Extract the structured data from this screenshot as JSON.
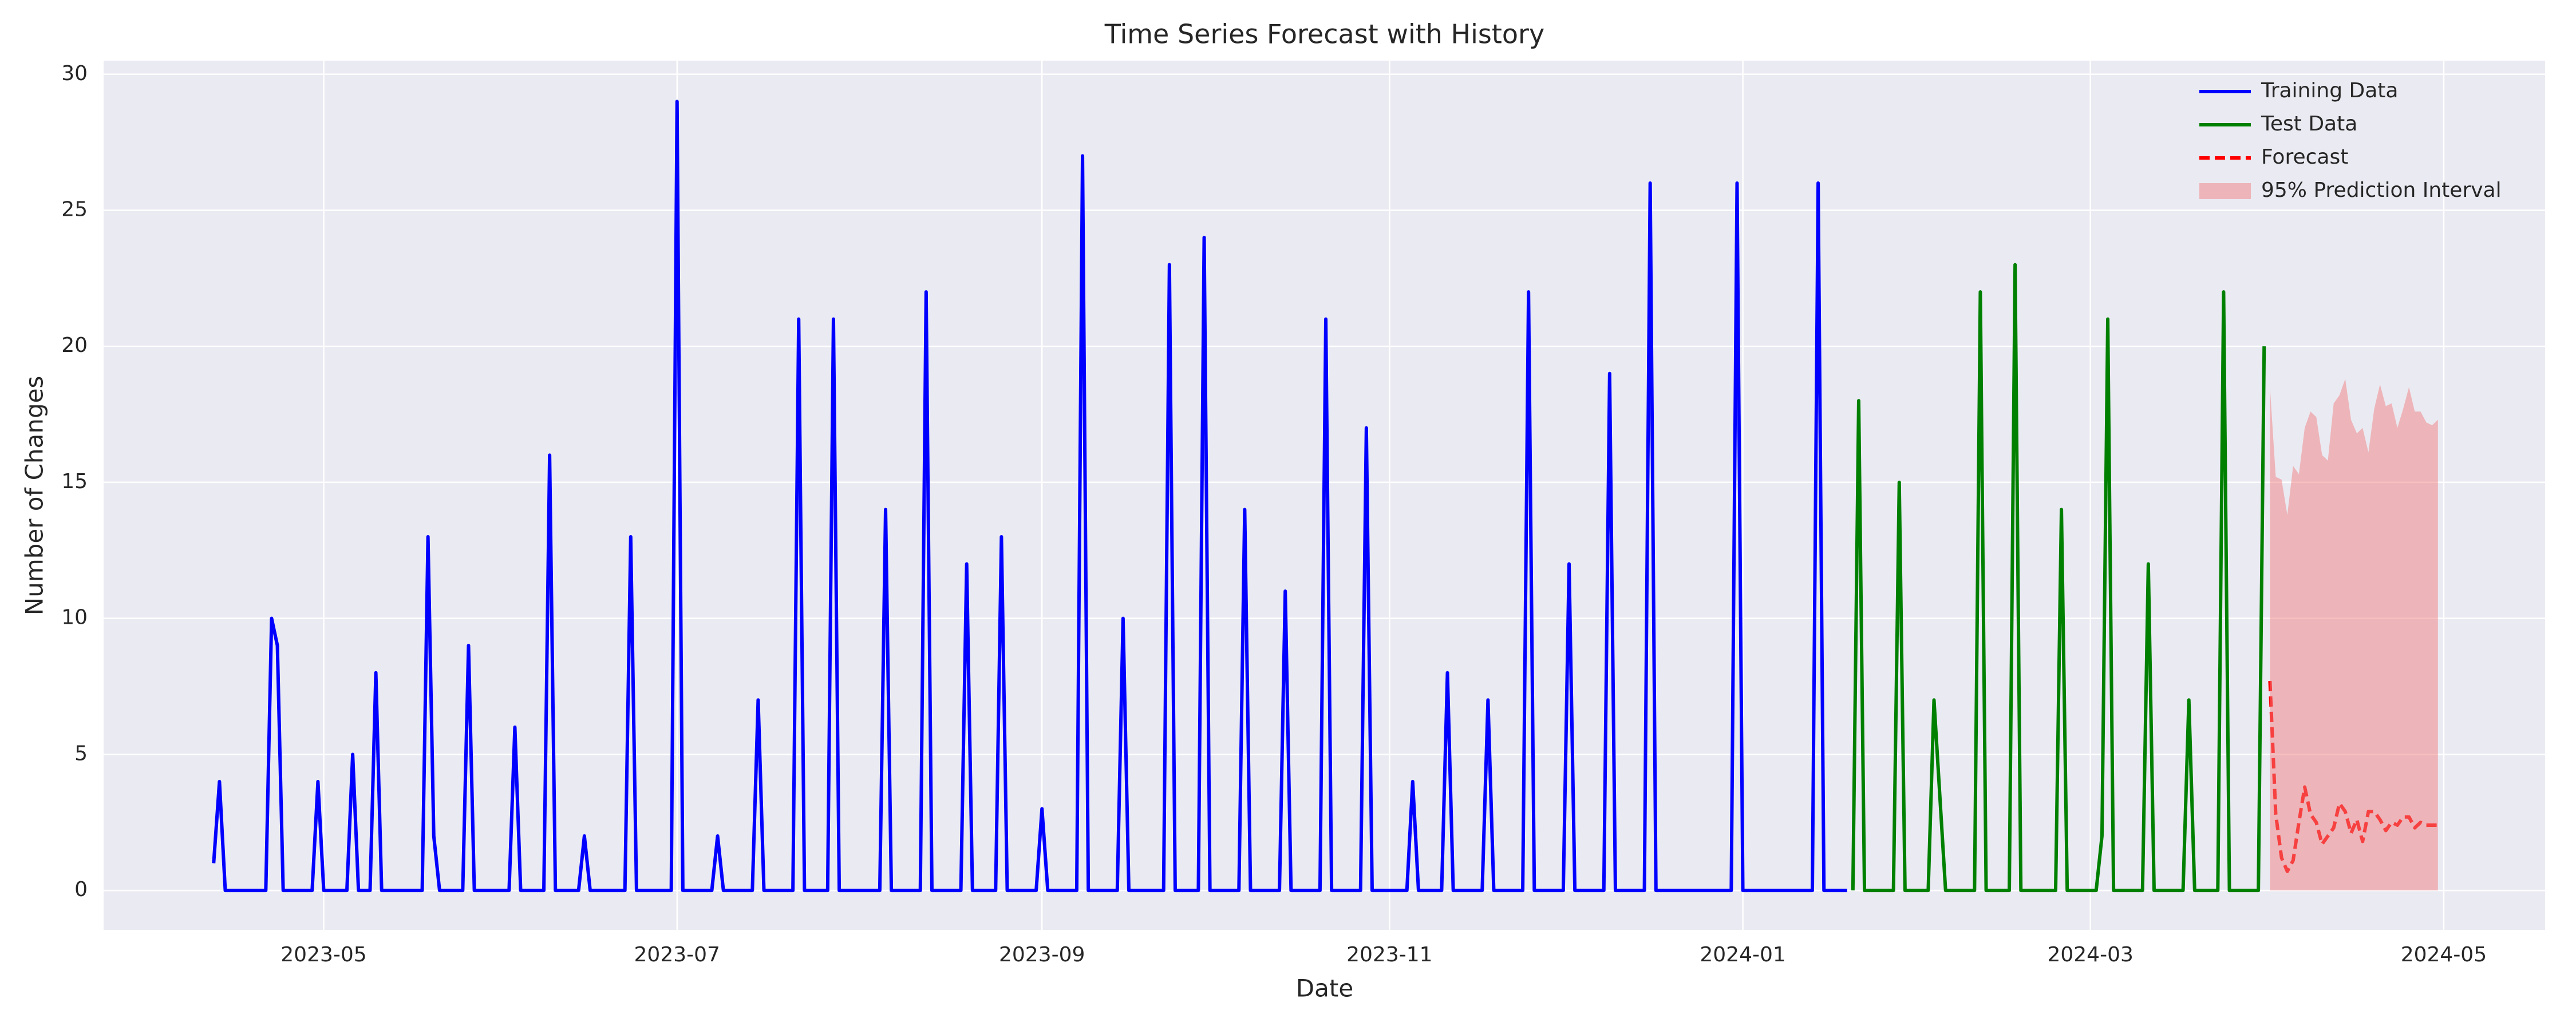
{
  "chart_data": {
    "type": "line",
    "title": "Time Series Forecast with History",
    "x_label": "Date",
    "y_label": "Number of Changes",
    "xlim": [
      -8,
      413.5
    ],
    "xticks": [
      {
        "value": 30,
        "label": "2023-05"
      },
      {
        "value": 91,
        "label": "2023-07"
      },
      {
        "value": 154,
        "label": "2023-09"
      },
      {
        "value": 214,
        "label": "2023-11"
      },
      {
        "value": 275,
        "label": "2024-01"
      },
      {
        "value": 335,
        "label": "2024-03"
      },
      {
        "value": 396,
        "label": "2024-05"
      }
    ],
    "ylim": [
      -1.45,
      30.5
    ],
    "yticks": [
      0,
      5,
      10,
      15,
      20,
      25,
      30
    ],
    "grid": true,
    "legend": "upper right",
    "series": [
      {
        "name": "Training Data",
        "color": "#0000ff",
        "dashed": false,
        "x": [
          11,
          12,
          13,
          20,
          21,
          22,
          23,
          28,
          29,
          30,
          34,
          35,
          36,
          38,
          39,
          40,
          47,
          48,
          49,
          50,
          54,
          55,
          56,
          62,
          63,
          64,
          68,
          69,
          70,
          74,
          75,
          76,
          82,
          83,
          84,
          90,
          91,
          92,
          97,
          98,
          99,
          104,
          105,
          106,
          111,
          112,
          113,
          117,
          118,
          119,
          126,
          127,
          128,
          133,
          134,
          135,
          140,
          141,
          142,
          146,
          147,
          148,
          153,
          154,
          155,
          160,
          161,
          162,
          167,
          168,
          169,
          175,
          176,
          177,
          181,
          182,
          183,
          188,
          189,
          190,
          195,
          196,
          197,
          202,
          203,
          204,
          209,
          210,
          211,
          217,
          218,
          219,
          223,
          224,
          225,
          230,
          231,
          232,
          237,
          238,
          239,
          244,
          245,
          246,
          251,
          252,
          253,
          258,
          259,
          260,
          273,
          274,
          275,
          287,
          288,
          289,
          293
        ],
        "values": [
          1,
          4,
          0,
          0,
          10,
          9,
          0,
          0,
          4,
          0,
          0,
          5,
          0,
          0,
          8,
          0,
          0,
          13,
          2,
          0,
          0,
          9,
          0,
          0,
          6,
          0,
          0,
          16,
          0,
          0,
          2,
          0,
          0,
          13,
          0,
          0,
          29,
          0,
          0,
          2,
          0,
          0,
          7,
          0,
          0,
          21,
          0,
          0,
          21,
          0,
          0,
          14,
          0,
          0,
          22,
          0,
          0,
          12,
          0,
          0,
          13,
          0,
          0,
          3,
          0,
          0,
          27,
          0,
          0,
          10,
          0,
          0,
          23,
          0,
          0,
          24,
          0,
          0,
          14,
          0,
          0,
          11,
          0,
          0,
          21,
          0,
          0,
          17,
          0,
          0,
          4,
          0,
          0,
          8,
          0,
          0,
          7,
          0,
          0,
          22,
          0,
          0,
          12,
          0,
          0,
          19,
          0,
          0,
          26,
          0,
          0,
          26,
          0,
          0,
          26,
          0,
          0
        ]
      },
      {
        "name": "Test Data",
        "color": "#008000",
        "dashed": false,
        "x": [
          294,
          295,
          296,
          301,
          302,
          303,
          307,
          308,
          310,
          315,
          316,
          317,
          321,
          322,
          323,
          329,
          330,
          331,
          336,
          337,
          338,
          339,
          344,
          345,
          346,
          351,
          352,
          353,
          357,
          358,
          359,
          364,
          365
        ],
        "values": [
          0,
          18,
          0,
          0,
          15,
          0,
          0,
          7,
          0,
          0,
          22,
          0,
          0,
          23,
          0,
          0,
          14,
          0,
          0,
          2,
          21,
          0,
          0,
          12,
          0,
          0,
          7,
          0,
          0,
          22,
          0,
          0,
          20
        ]
      },
      {
        "name": "Forecast",
        "color": "#ff0000",
        "dashed": true,
        "x": [
          366,
          367,
          368,
          369,
          370,
          371,
          372,
          373,
          374,
          375,
          376,
          377,
          378,
          379,
          380,
          381,
          382,
          383,
          384,
          385,
          386,
          387,
          388,
          389,
          390,
          391,
          392,
          393,
          394,
          395
        ],
        "values": [
          7.7,
          2.8,
          1.2,
          0.7,
          1.1,
          2.5,
          3.8,
          2.8,
          2.5,
          1.7,
          2.0,
          2.3,
          3.2,
          2.9,
          2.1,
          2.6,
          1.8,
          2.9,
          2.9,
          2.6,
          2.2,
          2.5,
          2.4,
          2.7,
          2.7,
          2.3,
          2.5,
          2.4,
          2.4,
          2.4
        ]
      },
      {
        "name": "95% Prediction Interval",
        "color": "#f08080",
        "opacity": 0.5,
        "x": [
          366,
          367,
          368,
          369,
          370,
          371,
          372,
          373,
          374,
          375,
          376,
          377,
          378,
          379,
          380,
          381,
          382,
          383,
          384,
          385,
          386,
          387,
          388,
          389,
          390,
          391,
          392,
          393,
          394,
          395
        ],
        "lower": [
          0,
          0,
          0,
          0,
          0,
          0,
          0,
          0,
          0,
          0,
          0,
          0,
          0,
          0,
          0,
          0,
          0,
          0,
          0,
          0,
          0,
          0,
          0,
          0,
          0,
          0,
          0,
          0,
          0,
          0
        ],
        "upper": [
          18.5,
          15.2,
          15.1,
          13.8,
          15.6,
          15.3,
          17.0,
          17.6,
          17.4,
          16.0,
          15.8,
          17.9,
          18.2,
          18.8,
          17.3,
          16.8,
          17.0,
          16.1,
          17.7,
          18.6,
          17.8,
          17.9,
          17.0,
          17.7,
          18.5,
          17.6,
          17.6,
          17.2,
          17.1,
          17.3
        ]
      }
    ]
  }
}
